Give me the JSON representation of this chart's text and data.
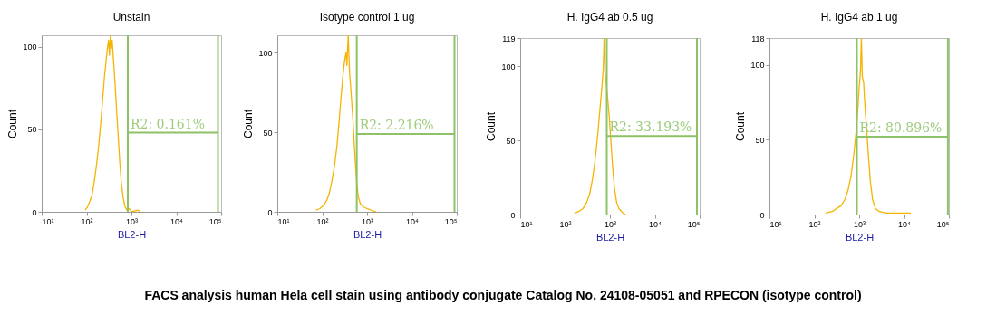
{
  "chart_data": [
    {
      "type": "line",
      "title": "Unstain",
      "xlabel": "BL2-H",
      "ylabel": "Count",
      "log": "x",
      "grid": false,
      "xlim": [
        10,
        100000
      ],
      "xticks": [
        {
          "value": 10,
          "label": "10¹"
        },
        {
          "value": 100,
          "label": "10²"
        },
        {
          "value": 1000,
          "label": "10³"
        },
        {
          "value": 10000,
          "label": "10⁴"
        },
        {
          "value": 100000,
          "label": "10⁵"
        }
      ],
      "ylim": [
        0,
        107
      ],
      "yticks": [
        0,
        50,
        100
      ],
      "series": [
        {
          "color": "#f5b400",
          "x": [
            93,
            105,
            117,
            132,
            148,
            166,
            186,
            209,
            234,
            251,
            269,
            288,
            309,
            324,
            339,
            355,
            372,
            398,
            427,
            457,
            501,
            550,
            603,
            661,
            724,
            794,
            891,
            1000,
            1413,
            1585
          ],
          "values": [
            1,
            3,
            6,
            10,
            18,
            28,
            40,
            55,
            72,
            82,
            90,
            98,
            104,
            95,
            107,
            99,
            104,
            92,
            80,
            66,
            48,
            30,
            16,
            8,
            3,
            1,
            2,
            0,
            1,
            0
          ]
        },
        {
          "color": "#8dc266",
          "x": [
            830,
            85000
          ],
          "values": [
            48,
            48
          ]
        }
      ],
      "ref_lines": [
        {
          "axis": "x",
          "value": 830,
          "color": "#8dc266"
        },
        {
          "axis": "x",
          "value": 85000,
          "color": "#8dc266"
        }
      ],
      "annotations": [
        {
          "text": "R2: 0.161%",
          "x": 830,
          "y": 48
        }
      ]
    },
    {
      "type": "line",
      "title": "Isotype control 1 ug",
      "xlabel": "BL2-H",
      "ylabel": "Count",
      "log": "x",
      "grid": false,
      "xlim": [
        10,
        100000
      ],
      "xticks": [
        {
          "value": 10,
          "label": "10¹"
        },
        {
          "value": 100,
          "label": "10²"
        },
        {
          "value": 1000,
          "label": "10³"
        },
        {
          "value": 10000,
          "label": "10⁴"
        },
        {
          "value": 100000,
          "label": "10⁵"
        }
      ],
      "ylim": [
        0,
        111
      ],
      "yticks": [
        0,
        50,
        100
      ],
      "series": [
        {
          "color": "#f5b400",
          "x": [
            72,
            89,
            107,
            126,
            145,
            166,
            191,
            214,
            240,
            263,
            288,
            316,
            339,
            355,
            380,
            407,
            437,
            479,
            525,
            575,
            631,
            708,
            832,
            1000,
            1259,
            1585
          ],
          "values": [
            1,
            2,
            4,
            7,
            12,
            20,
            30,
            42,
            58,
            72,
            85,
            95,
            100,
            92,
            111,
            88,
            76,
            60,
            40,
            22,
            10,
            5,
            3,
            2,
            1,
            0
          ]
        },
        {
          "color": "#8dc266",
          "x": [
            590,
            89000
          ],
          "values": [
            49,
            49
          ]
        }
      ],
      "ref_lines": [
        {
          "axis": "x",
          "value": 590,
          "color": "#8dc266"
        },
        {
          "axis": "x",
          "value": 89000,
          "color": "#8dc266"
        }
      ],
      "annotations": [
        {
          "text": "R2: 2.216%",
          "x": 590,
          "y": 49
        }
      ]
    },
    {
      "type": "line",
      "title": "H. IgG4 ab 0.5 ug",
      "xlabel": "BL2-H",
      "ylabel": "Count",
      "log": "x",
      "grid": false,
      "xlim": [
        10,
        100000
      ],
      "xticks": [
        {
          "value": 10,
          "label": "10¹"
        },
        {
          "value": 100,
          "label": "10²"
        },
        {
          "value": 1000,
          "label": "10³"
        },
        {
          "value": 10000,
          "label": "10⁴"
        },
        {
          "value": 100000,
          "label": "10⁵"
        }
      ],
      "ylim": [
        0,
        119
      ],
      "yticks": [
        0,
        50,
        100,
        119
      ],
      "series": [
        {
          "color": "#f5b400",
          "x": [
            162,
            200,
            251,
            302,
            355,
            398,
            447,
            501,
            550,
            603,
            661,
            708,
            741,
            776,
            832,
            891,
            955,
            1047,
            1148,
            1259,
            1413,
            1585,
            1950,
            2239
          ],
          "values": [
            1,
            2,
            4,
            8,
            14,
            22,
            32,
            45,
            58,
            72,
            86,
            98,
            119,
            96,
            88,
            78,
            68,
            50,
            32,
            18,
            8,
            4,
            1,
            0
          ]
        },
        {
          "color": "#8dc266",
          "x": [
            850,
            87000
          ],
          "values": [
            53,
            53
          ]
        }
      ],
      "ref_lines": [
        {
          "axis": "x",
          "value": 850,
          "color": "#8dc266"
        },
        {
          "axis": "x",
          "value": 87000,
          "color": "#8dc266"
        }
      ],
      "annotations": [
        {
          "text": "R2: 33.193%",
          "x": 850,
          "y": 53
        }
      ]
    },
    {
      "type": "line",
      "title": "H. IgG4 ab 1 ug",
      "xlabel": "BL2-H",
      "ylabel": "Count",
      "log": "x",
      "grid": false,
      "xlim": [
        10,
        100000
      ],
      "xticks": [
        {
          "value": 10,
          "label": "10¹"
        },
        {
          "value": 100,
          "label": "10²"
        },
        {
          "value": 1000,
          "label": "10³"
        },
        {
          "value": 10000,
          "label": "10⁴"
        },
        {
          "value": 100000,
          "label": "10⁵"
        }
      ],
      "ylim": [
        0,
        118
      ],
      "yticks": [
        0,
        50,
        100,
        118
      ],
      "series": [
        {
          "color": "#f5b400",
          "x": [
            178,
            251,
            316,
            398,
            479,
            562,
            661,
            759,
            851,
            933,
            1000,
            1072,
            1122,
            1175,
            1259,
            1349,
            1479,
            1622,
            1778,
            1995,
            2291,
            2818,
            3981,
            14125
          ],
          "values": [
            1,
            2,
            4,
            6,
            10,
            16,
            26,
            40,
            55,
            70,
            85,
            96,
            118,
            92,
            88,
            72,
            55,
            38,
            22,
            10,
            4,
            2,
            1,
            1
          ]
        },
        {
          "color": "#8dc266",
          "x": [
            890,
            95000
          ],
          "values": [
            52,
            52
          ]
        }
      ],
      "ref_lines": [
        {
          "axis": "x",
          "value": 890,
          "color": "#8dc266"
        },
        {
          "axis": "x",
          "value": 95000,
          "color": "#8dc266"
        }
      ],
      "annotations": [
        {
          "text": "R2: 80.896%",
          "x": 890,
          "y": 52
        },
        "FACS analysis human Hela cell stain using antibody conjugate Catalog No. 24108-05051 and RPECON (isotype control)"
      ]
    }
  ]
}
